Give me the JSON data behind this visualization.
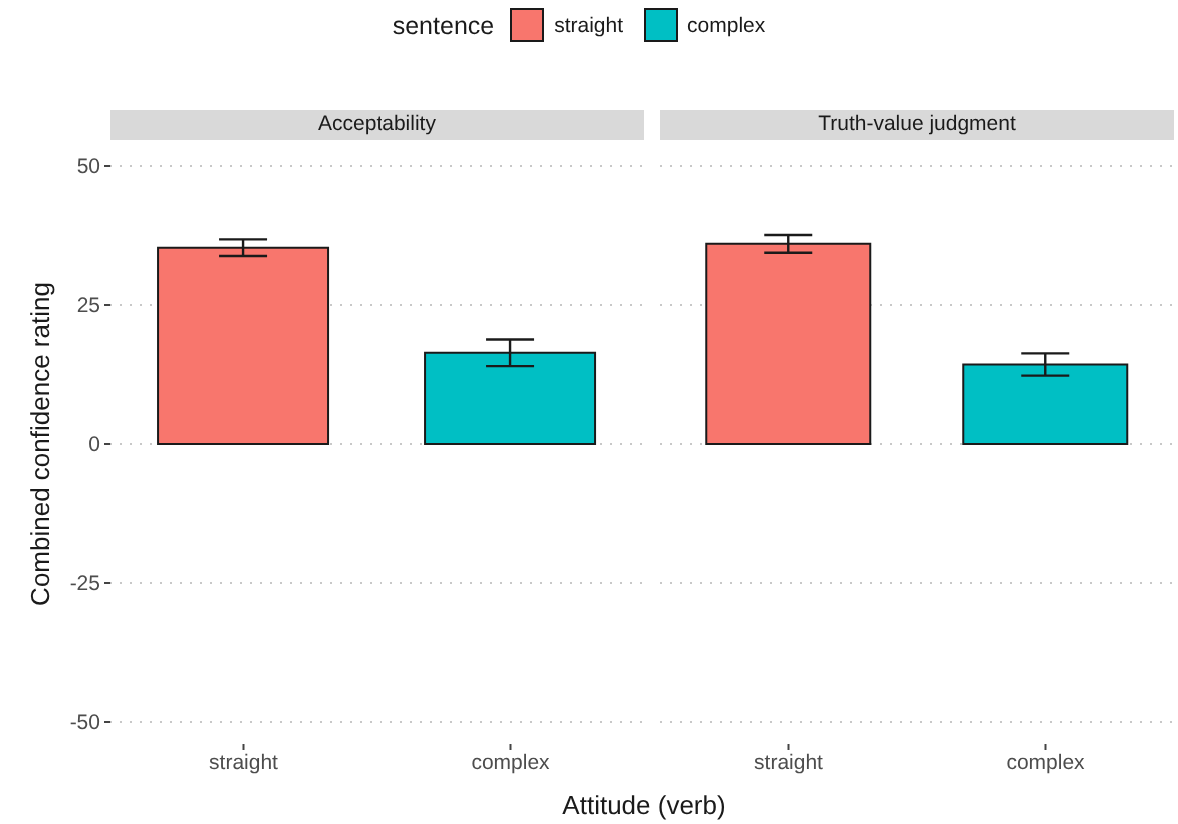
{
  "chart_data": [
    {
      "type": "bar",
      "title": "Acceptability",
      "xlabel": "Attitude (verb)",
      "ylabel": "Combined confidence rating",
      "legend_title": "sentence",
      "legend": "top",
      "stacked": true,
      "categories": [
        "straight",
        "complex"
      ],
      "series": [
        {
          "name": "straight",
          "color": "#f8766d",
          "values": [
            35.3,
            null
          ],
          "errors": [
            1.5,
            null
          ]
        },
        {
          "name": "complex",
          "color": "#00bfc4",
          "values": [
            null,
            16.4
          ],
          "errors": [
            null,
            2.4
          ]
        }
      ],
      "ylim": [
        -50,
        50
      ],
      "yticks": [
        -50,
        -25,
        0,
        25,
        50
      ],
      "grid": "y"
    },
    {
      "type": "bar",
      "title": "Truth-value judgment",
      "stacked": true,
      "categories": [
        "straight",
        "complex"
      ],
      "series": [
        {
          "color": "#f8766d",
          "values": [
            36.0,
            null
          ],
          "errors": [
            1.6,
            null
          ]
        },
        {
          "color": "#00bfc4",
          "values": [
            null,
            14.3
          ],
          "errors": [
            null,
            2.0
          ]
        }
      ],
      "ylim": [
        -50,
        50
      ],
      "yticks": [
        -50,
        -25,
        0,
        25,
        50
      ],
      "grid": "y",
      "tick_labels": "x"
    }
  ]
}
